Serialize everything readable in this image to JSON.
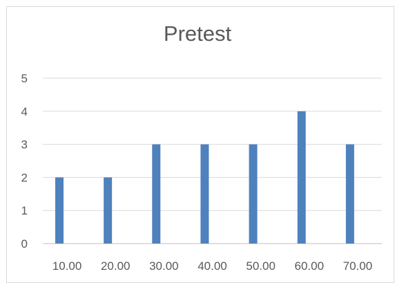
{
  "chart_data": {
    "type": "bar",
    "title": "Pretest",
    "categories": [
      "10.00",
      "20.00",
      "30.00",
      "40.00",
      "50.00",
      "60.00",
      "70.00"
    ],
    "values": [
      2,
      2,
      3,
      3,
      3,
      4,
      3
    ],
    "ylim": [
      0,
      5
    ],
    "yticks": [
      "0",
      "1",
      "2",
      "3",
      "4",
      "5"
    ],
    "grid": true,
    "bar_color": "#4f81bd",
    "xlabel": "",
    "ylabel": ""
  }
}
